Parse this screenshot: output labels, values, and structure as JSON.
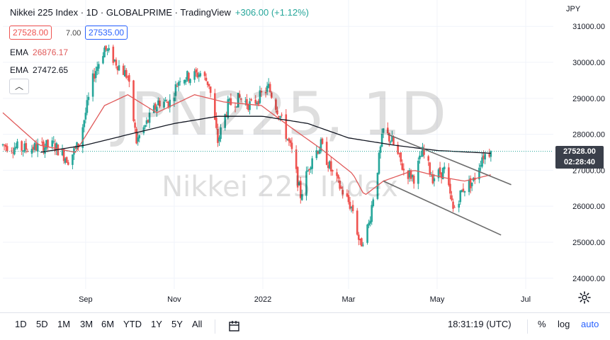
{
  "header": {
    "symbol": "Nikkei 225 Index · 1D · GLOBALPRIME · TradingView",
    "change": "+306.00 (+1.12%)"
  },
  "quote": {
    "sell": "27528.00",
    "spread": "7.00",
    "buy": "27535.00"
  },
  "indicators": [
    {
      "label": "EMA",
      "value": "26876.17",
      "color": "#e05a5a"
    },
    {
      "label": "EMA",
      "value": "27472.65",
      "color": "#131722"
    }
  ],
  "currency": "JPY",
  "watermark": {
    "symbol": "JPN225, 1D",
    "name": "Nikkei 225 Index"
  },
  "last_price": {
    "value": "27528.00",
    "countdown": "02:28:40"
  },
  "toolbar": {
    "ranges": [
      "1D",
      "5D",
      "1M",
      "3M",
      "6M",
      "YTD",
      "1Y",
      "5Y",
      "All"
    ],
    "time": "18:31:19 (UTC)",
    "percent": "%",
    "log": "log",
    "auto": "auto"
  },
  "colors": {
    "up": "#26a69a",
    "down": "#ef5350",
    "ema_fast": "#e05a5a",
    "ema_slow": "#131722",
    "trendline": "#6b6b6b"
  },
  "chart_data": {
    "type": "candlestick",
    "x_ticks": [
      {
        "label": "Sep",
        "date": "2021-09-01"
      },
      {
        "label": "Nov",
        "date": "2021-11-01"
      },
      {
        "label": "2022",
        "date": "2022-01-01"
      },
      {
        "label": "Mar",
        "date": "2022-03-01"
      },
      {
        "label": "May",
        "date": "2022-05-01"
      },
      {
        "label": "Jul",
        "date": "2022-07-01"
      }
    ],
    "y_ticks": [
      24000,
      25000,
      26000,
      27000,
      28000,
      29000,
      30000,
      31000
    ],
    "y_tick_labels": [
      "24000.00",
      "25000.00",
      "26000.00",
      "27000.00",
      "28000.00",
      "29000.00",
      "30000.00",
      "31000.00"
    ],
    "ylim": [
      23700,
      31300
    ],
    "xlim": [
      "2021-07-06",
      "2022-07-20"
    ],
    "last": 27528,
    "close_waypoints": [
      [
        "2021-07-06",
        27700
      ],
      [
        "2021-07-20",
        27600
      ],
      [
        "2021-08-10",
        27700
      ],
      [
        "2021-08-20",
        27300
      ],
      [
        "2021-08-27",
        27700
      ],
      [
        "2021-09-01",
        28600
      ],
      [
        "2021-09-07",
        29700
      ],
      [
        "2021-09-14",
        30400
      ],
      [
        "2021-09-22",
        30000
      ],
      [
        "2021-09-30",
        29600
      ],
      [
        "2021-10-06",
        27800
      ],
      [
        "2021-10-13",
        28300
      ],
      [
        "2021-10-21",
        28900
      ],
      [
        "2021-10-29",
        28900
      ],
      [
        "2021-11-05",
        29600
      ],
      [
        "2021-11-12",
        29600
      ],
      [
        "2021-11-19",
        29700
      ],
      [
        "2021-11-25",
        29400
      ],
      [
        "2021-12-01",
        27800
      ],
      [
        "2021-12-08",
        28800
      ],
      [
        "2021-12-16",
        29000
      ],
      [
        "2021-12-24",
        28800
      ],
      [
        "2022-01-05",
        29300
      ],
      [
        "2022-01-13",
        28500
      ],
      [
        "2022-01-21",
        27500
      ],
      [
        "2022-01-27",
        26300
      ],
      [
        "2022-02-04",
        27400
      ],
      [
        "2022-02-10",
        27700
      ],
      [
        "2022-02-18",
        26900
      ],
      [
        "2022-02-25",
        26400
      ],
      [
        "2022-03-04",
        25900
      ],
      [
        "2022-03-09",
        24900
      ],
      [
        "2022-03-15",
        25500
      ],
      [
        "2022-03-25",
        28100
      ],
      [
        "2022-03-31",
        27800
      ],
      [
        "2022-04-08",
        27000
      ],
      [
        "2022-04-15",
        26800
      ],
      [
        "2022-04-21",
        27500
      ],
      [
        "2022-04-28",
        26800
      ],
      [
        "2022-05-06",
        27000
      ],
      [
        "2022-05-12",
        25900
      ],
      [
        "2022-05-19",
        26500
      ],
      [
        "2022-05-26",
        26700
      ],
      [
        "2022-06-01",
        27400
      ],
      [
        "2022-06-07",
        27528
      ]
    ],
    "ema_fast_waypoints": [
      [
        "2021-07-06",
        28600
      ],
      [
        "2021-07-31",
        27700
      ],
      [
        "2021-08-25",
        27500
      ],
      [
        "2021-09-14",
        28800
      ],
      [
        "2021-09-30",
        29100
      ],
      [
        "2021-10-20",
        28600
      ],
      [
        "2021-11-15",
        29100
      ],
      [
        "2021-12-05",
        28900
      ],
      [
        "2021-12-31",
        28800
      ],
      [
        "2022-01-20",
        28200
      ],
      [
        "2022-02-10",
        27600
      ],
      [
        "2022-03-04",
        26900
      ],
      [
        "2022-03-12",
        26300
      ],
      [
        "2022-03-25",
        26700
      ],
      [
        "2022-04-15",
        27000
      ],
      [
        "2022-05-05",
        26800
      ],
      [
        "2022-05-20",
        26700
      ],
      [
        "2022-06-07",
        26876
      ]
    ],
    "ema_slow_waypoints": [
      [
        "2021-08-01",
        27500
      ],
      [
        "2021-09-01",
        27700
      ],
      [
        "2021-10-01",
        28000
      ],
      [
        "2021-11-01",
        28300
      ],
      [
        "2021-12-01",
        28500
      ],
      [
        "2022-01-01",
        28500
      ],
      [
        "2022-02-01",
        28300
      ],
      [
        "2022-03-01",
        27900
      ],
      [
        "2022-04-01",
        27700
      ],
      [
        "2022-05-01",
        27550
      ],
      [
        "2022-06-07",
        27473
      ]
    ],
    "trendlines": [
      {
        "from": [
          "2022-03-28",
          28000
        ],
        "to": [
          "2022-06-21",
          26600
        ]
      },
      {
        "from": [
          "2022-03-25",
          26700
        ],
        "to": [
          "2022-06-14",
          25200
        ]
      }
    ]
  }
}
